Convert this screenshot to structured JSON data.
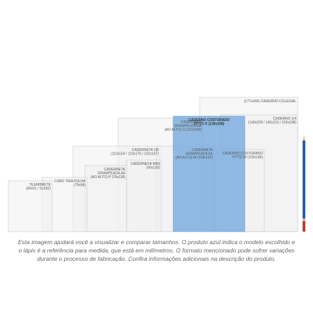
{
  "items": [
    {
      "lines": [
        "(177x240) CADERNO COLEGIAL"
      ]
    },
    {
      "lines": [
        "CADERNO 1/4",
        "(140x200 / 140x210 / 150x208)"
      ]
    },
    {
      "lines": [
        "CADERNETA",
        "GRAMPEADA AA",
        "(AO ALTO) G (152x203)"
      ]
    },
    {
      "lines": [
        "CADERNETA 1/8",
        "(110x154 / 123x176 / 102x147)"
      ]
    },
    {
      "lines": [
        "CADERNETA",
        "GRAMPEADA AA",
        "(AO ALTO) M (104x152)"
      ]
    },
    {
      "lines": [
        "CADERNO COSTURADO",
        "FITTO M (103x146)"
      ]
    },
    {
      "lines": [
        "CADERNETA MINI",
        "(90x130)"
      ]
    },
    {
      "lines": [
        "CADERNETA",
        "GRAMPEADA AA",
        "(AO ALTO) P (76x118)"
      ]
    },
    {
      "lines": [
        "CUBO TIRA FOLHA",
        "(79x98)"
      ]
    },
    {
      "lines": [
        "TILEMBRETE",
        "(80x91 / 91X82)"
      ]
    },
    {
      "lines": [
        "CADERNO COSTURADO",
        "FITTO G (128x208)"
      ],
      "selected": true
    }
  ],
  "caption": [
    "Esta imagem ajudará você a visualizar e comparar tamanhos. O produto azul indica o modelo escolhido e",
    "o lápis é a referência para medida, que está em milímetros. O formato mencionado pode sofrer variações",
    "durante o processo de fabricação. Confira informações adicionais na descrição do produto."
  ]
}
